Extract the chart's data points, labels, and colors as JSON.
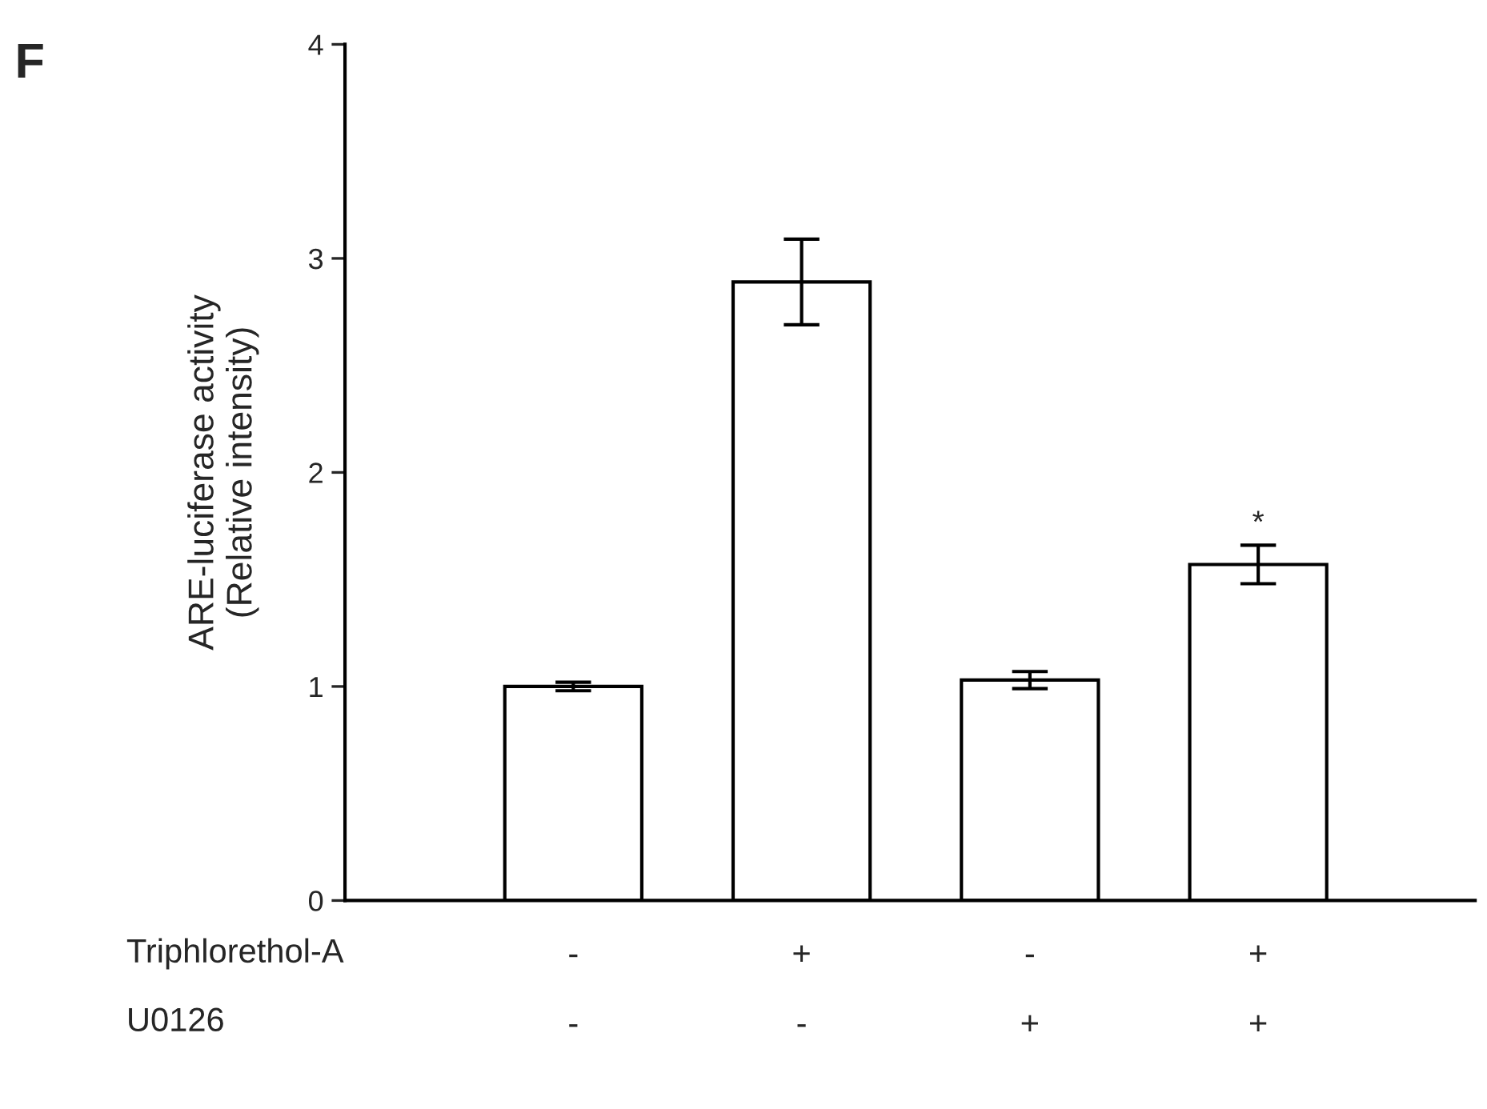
{
  "chart_data": {
    "type": "bar",
    "ylabel": "ARE-luciferase activity\n(Relative intensity)",
    "categories": [
      "-\n-",
      "+\n-",
      "-\n+",
      "+\n+"
    ],
    "values": [
      1.0,
      2.89,
      1.03,
      1.57
    ],
    "errors": [
      0.02,
      0.2,
      0.04,
      0.09
    ],
    "color": "#ffffff",
    "ylim": [
      0,
      4
    ],
    "yticks": [
      0,
      1,
      2,
      3,
      4
    ],
    "grid": false,
    "annotations": [
      "F",
      "Triphlorethol-A",
      "U0126",
      "*"
    ]
  }
}
